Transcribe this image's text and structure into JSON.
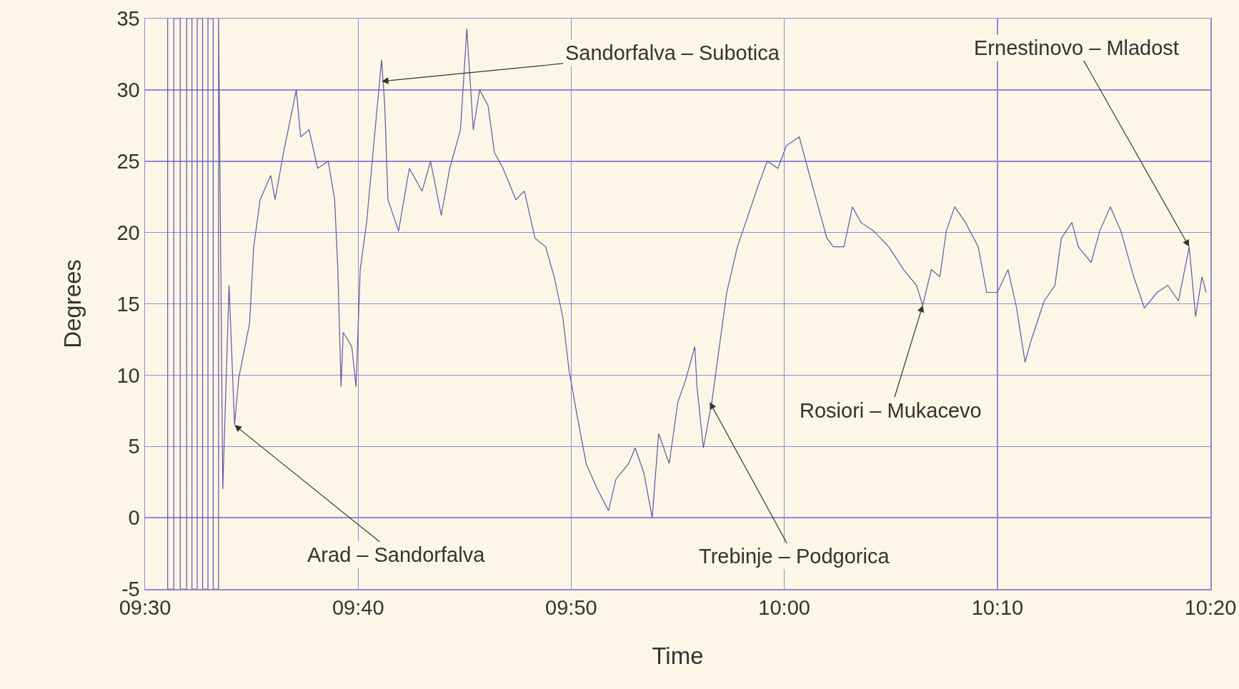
{
  "chart_data": {
    "type": "line",
    "xlabel": "Time",
    "ylabel": "Degrees",
    "color": "#5a5aa8",
    "grid": true,
    "xlim": [
      9.5,
      10.3333
    ],
    "xticks": [
      {
        "value": 9.5,
        "label": "09:30"
      },
      {
        "value": 9.6667,
        "label": "09:40"
      },
      {
        "value": 9.8333,
        "label": "09:50"
      },
      {
        "value": 10,
        "label": "10:00"
      },
      {
        "value": 10.1667,
        "label": "10:10"
      },
      {
        "value": 10.3333,
        "label": "10:20"
      }
    ],
    "ylim": [
      -5,
      35
    ],
    "yticks": [
      -5,
      0,
      5,
      10,
      15,
      20,
      25,
      30,
      35
    ],
    "x": [
      9.5177,
      9.5177,
      9.5225,
      9.5225,
      9.5275,
      9.5275,
      9.5325,
      9.5325,
      9.5367,
      9.5367,
      9.5408,
      9.5408,
      9.545,
      9.545,
      9.5492,
      9.5492,
      9.5533,
      9.5533,
      9.5575,
      9.5575,
      9.5608,
      9.5657,
      9.57,
      9.5733,
      9.5817,
      9.585,
      9.59,
      9.5983,
      9.6017,
      9.6083,
      9.6183,
      9.6217,
      9.6283,
      9.635,
      9.6433,
      9.6483,
      9.6508,
      9.6533,
      9.655,
      9.6617,
      9.665,
      9.6683,
      9.6733,
      9.6783,
      9.685,
      9.6875,
      9.69,
      9.6983,
      9.7067,
      9.7167,
      9.7233,
      9.7317,
      9.7383,
      9.7467,
      9.7517,
      9.7567,
      9.7617,
      9.7683,
      9.7733,
      9.78,
      9.79,
      9.7967,
      9.805,
      9.8133,
      9.82,
      9.8267,
      9.8317,
      9.8383,
      9.845,
      9.8533,
      9.8625,
      9.8683,
      9.8783,
      9.8833,
      9.89,
      9.8967,
      9.9017,
      9.91,
      9.9167,
      9.9233,
      9.93,
      9.9317,
      9.9367,
      9.9433,
      9.9483,
      9.955,
      9.9633,
      9.9717,
      9.98,
      9.9867,
      9.995,
      10.0017,
      10.0117,
      10.0183,
      10.025,
      10.0333,
      10.0383,
      10.0467,
      10.0533,
      10.06,
      10.07,
      10.0817,
      10.0933,
      10.1033,
      10.1083,
      10.115,
      10.1217,
      10.1267,
      10.1333,
      10.1417,
      10.1517,
      10.1583,
      10.1667,
      10.175,
      10.1817,
      10.1883,
      10.1933,
      10.2033,
      10.2117,
      10.2167,
      10.225,
      10.23,
      10.24,
      10.2467,
      10.255,
      10.2633,
      10.2733,
      10.2817,
      10.2917,
      10.3,
      10.3083,
      10.3167,
      10.3217,
      10.3267,
      10.33
    ],
    "values": [
      35,
      -5,
      -5,
      35,
      35,
      -5,
      -5,
      35,
      35,
      -5,
      -5,
      35,
      35,
      -5,
      -5,
      35,
      35,
      -5,
      -5,
      35,
      2,
      16.3,
      6.5,
      9.8,
      13.6,
      19,
      22.3,
      24,
      22.3,
      25.6,
      30,
      26.7,
      27.2,
      24.5,
      25,
      22.3,
      17.4,
      9.2,
      13,
      12,
      9.2,
      17.4,
      20.7,
      25.6,
      32.1,
      28.9,
      22.3,
      20.1,
      24.5,
      22.9,
      25,
      21.2,
      24.5,
      27.2,
      34.3,
      27.2,
      30,
      28.9,
      25.6,
      24.5,
      22.3,
      22.9,
      19.6,
      19,
      16.9,
      14.1,
      10.3,
      7,
      3.8,
      2.1,
      0.5,
      2.7,
      3.8,
      4.9,
      3.2,
      0,
      5.9,
      3.8,
      8.1,
      9.8,
      12,
      9.2,
      4.9,
      8.1,
      11.4,
      15.8,
      19,
      21.2,
      23.4,
      25,
      24.5,
      26.1,
      26.7,
      24.5,
      22.3,
      19.6,
      19,
      19,
      21.8,
      20.7,
      20.1,
      19,
      17.4,
      16.3,
      14.9,
      17.4,
      16.9,
      20.1,
      21.8,
      20.7,
      19,
      15.8,
      15.8,
      17.4,
      14.7,
      10.9,
      12.5,
      15.2,
      16.3,
      19.6,
      20.7,
      19,
      17.9,
      20.1,
      21.8,
      20.1,
      16.9,
      14.7,
      15.8,
      16.3,
      15.2,
      19,
      14.1,
      16.9,
      15.8
    ],
    "annotations": [
      {
        "text": "Arad – Sandorfalva",
        "x": 9.57,
        "y": 6.5
      },
      {
        "text": "Sandorfalva – Subotica",
        "x": 9.685,
        "y": 30.6
      },
      {
        "text": "Trebinje – Podgorica",
        "x": 9.9417,
        "y": 8.1
      },
      {
        "text": "Rosiori – Mukacevo",
        "x": 10.1083,
        "y": 14.9
      },
      {
        "text": "Ernestinovo – Mladost",
        "x": 10.3167,
        "y": 19
      }
    ]
  }
}
